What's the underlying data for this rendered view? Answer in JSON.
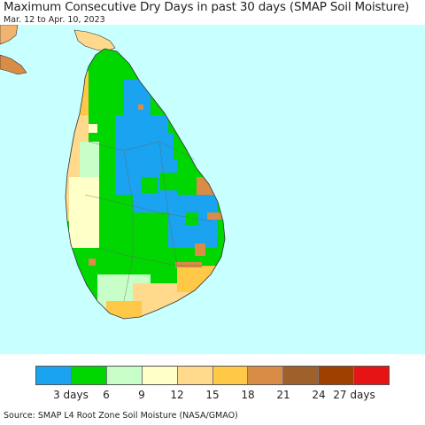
{
  "title": "Maximum Consecutive Dry Days in past 30 days (SMAP Soil Moisture)",
  "subtitle": "Mar. 12 to Apr. 10, 2023",
  "legend": {
    "colors": [
      "#1aa3f0",
      "#00d600",
      "#c8ffc8",
      "#ffffc8",
      "#ffd98c",
      "#ffc846",
      "#d98c46",
      "#a0602c",
      "#a04000",
      "#e61414"
    ],
    "labels": [
      "3 days",
      "6",
      "9",
      "12",
      "15",
      "18",
      "21",
      "24",
      "27 days"
    ]
  },
  "colors": {
    "ocean": "#c8ffff",
    "land_mainland": "#f0b46e"
  },
  "source": "Source: SMAP L4 Root Zone Soil Moisture (NASA/GMAO)"
}
